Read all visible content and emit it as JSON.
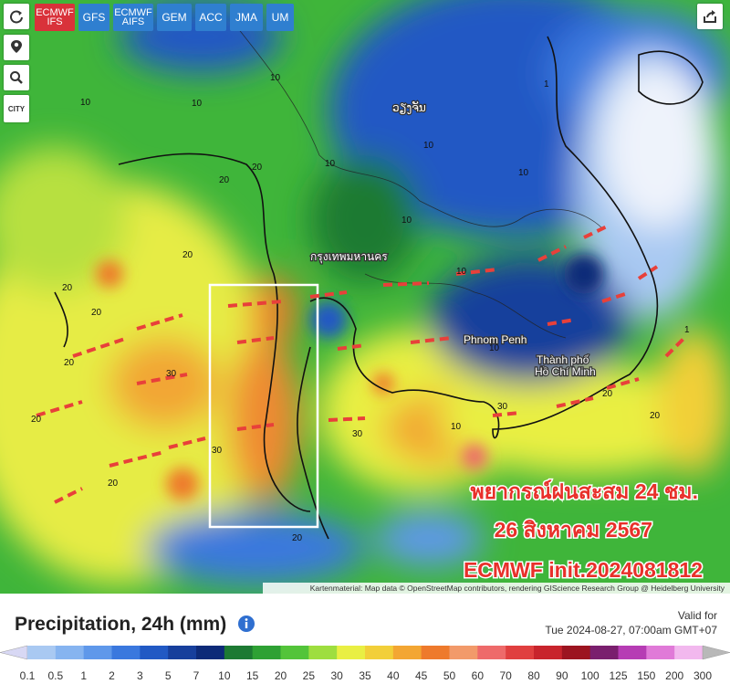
{
  "toolbar": {
    "models": [
      [
        "ECMWF",
        "IFS"
      ],
      [
        "GFS"
      ],
      [
        "ECMWF",
        "AIFS"
      ],
      [
        "GEM"
      ],
      [
        "ACC"
      ],
      [
        "JMA"
      ],
      [
        "UM"
      ]
    ],
    "city_button": "CITY"
  },
  "map": {
    "places": [
      "ວຽງຈັນ",
      "กรุงเทพมหานคร",
      "Phnom Penh",
      "Thành phố",
      "Hồ Chí Minh"
    ],
    "contour_labels": [
      "10",
      "10",
      "10",
      "1",
      "20",
      "20",
      "10",
      "10",
      "10",
      "10",
      "20",
      "20",
      "30",
      "20",
      "30",
      "20",
      "20",
      "30",
      "10",
      "10",
      "30",
      "20",
      "20",
      "20",
      "1",
      "10",
      "20"
    ],
    "overlay": [
      "พยากรณ์ฝนสะสม 24 ชม.",
      "26 สิงหาคม 2567",
      "ECMWF init.2024081812"
    ],
    "attribution": "Kartenmaterial: Map data © OpenStreetMap contributors, rendering GIScience Research Group @ Heidelberg University"
  },
  "legend": {
    "title": "Precipitation, 24h (mm)",
    "valid_label": "Valid for",
    "valid_time": "Tue 2024-08-27, 07:00am GMT+07",
    "ticks": [
      "0.1",
      "0.5",
      "1",
      "2",
      "3",
      "5",
      "7",
      "10",
      "15",
      "20",
      "25",
      "30",
      "35",
      "40",
      "45",
      "50",
      "60",
      "70",
      "80",
      "90",
      "100",
      "125",
      "150",
      "200",
      "300"
    ],
    "colors": [
      "#d8d8f4",
      "#a9c9f2",
      "#86b4f0",
      "#5f98ea",
      "#3a78de",
      "#2159c4",
      "#173f9c",
      "#0d2a78",
      "#1d7a33",
      "#2ea134",
      "#53c43a",
      "#9ede3f",
      "#e9ef43",
      "#f2cf39",
      "#f3a633",
      "#ee7a2c",
      "#f29a6a",
      "#ee6a6a",
      "#e03f3f",
      "#c8242c",
      "#9c1420",
      "#7a1f6e",
      "#b63cb4",
      "#e07ad8",
      "#f2b8ee",
      "#f6e0f6",
      "#b8b8b8"
    ]
  }
}
